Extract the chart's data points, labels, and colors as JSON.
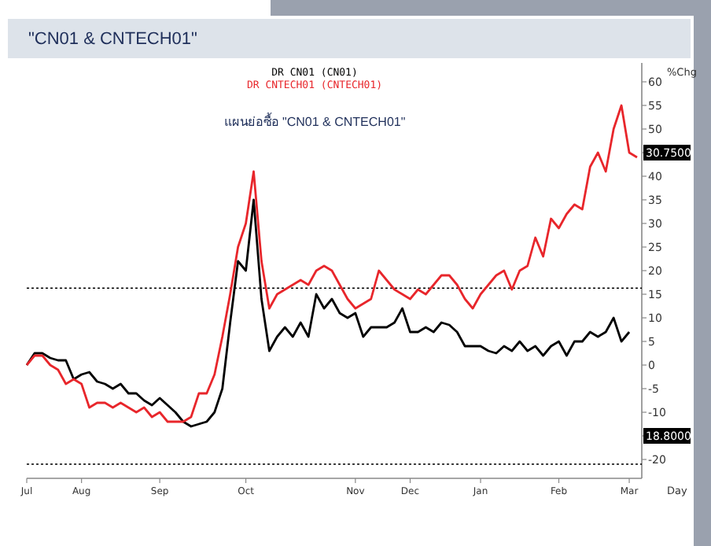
{
  "chart_data": {
    "type": "line",
    "title": "\"CN01 & CNTECH01\"",
    "subtitle": "แผนย่อซื้อ \"CN01 & CNTECH01\"",
    "ylabel": "%Chg",
    "xlabel": "Day",
    "legend": "top",
    "grid": false,
    "marker": "none",
    "line_style": "solid",
    "ylim": [
      -24,
      64
    ],
    "yticks": [
      -20,
      {
        "value": -15,
        "label": null
      },
      -10,
      -5,
      0,
      5,
      10,
      15,
      20,
      25,
      30,
      35,
      40,
      {
        "value": 45,
        "label": null
      },
      50,
      55,
      60
    ],
    "categories": [
      "Jul",
      null,
      null,
      null,
      null,
      null,
      null,
      "Aug",
      null,
      null,
      null,
      null,
      null,
      null,
      null,
      null,
      null,
      "Sep",
      null,
      null,
      null,
      null,
      null,
      null,
      null,
      null,
      null,
      null,
      "Oct",
      null,
      null,
      null,
      null,
      null,
      null,
      null,
      null,
      null,
      null,
      null,
      null,
      null,
      "Nov",
      null,
      null,
      null,
      null,
      null,
      null,
      "Dec",
      null,
      null,
      null,
      null,
      null,
      null,
      null,
      null,
      "Jan",
      null,
      null,
      null,
      null,
      null,
      null,
      null,
      null,
      null,
      "Feb",
      null,
      null,
      null,
      null,
      null,
      null,
      null,
      null,
      "Mar",
      null
    ],
    "ref_lines": [
      {
        "axis": "y",
        "value": 16.3,
        "line_style": "dotted",
        "color": "#000000"
      },
      {
        "axis": "y",
        "value": -21,
        "line_style": "dotted",
        "color": "#000000"
      }
    ],
    "annotations": [
      "30.7500",
      "18.8000"
    ],
    "series": [
      {
        "name": "DR CN01 (CN01)",
        "color": "#000000",
        "values": [
          0,
          2.5,
          2.5,
          1.5,
          1,
          1,
          -3,
          -2,
          -1.5,
          -3.5,
          -4,
          -5,
          -4,
          -6,
          -6,
          -7.5,
          -8.5,
          -7,
          -8.5,
          -10,
          -12,
          -13,
          -12.5,
          -12,
          -10,
          -5,
          9,
          22,
          20,
          35,
          14,
          3,
          6,
          8,
          6,
          9,
          6,
          15,
          12,
          14,
          11,
          10,
          11,
          6,
          8,
          8,
          8,
          9,
          12,
          7,
          7,
          8,
          7,
          9,
          8.5,
          7,
          4,
          4,
          4,
          3,
          2.5,
          4,
          3,
          5,
          3,
          4,
          2,
          4,
          5,
          2,
          5,
          5,
          7,
          6,
          7,
          10,
          5,
          7,
          null
        ]
      },
      {
        "name": "DR CNTECH01 (CNTECH01)",
        "color": "#e8262b",
        "values": [
          0,
          2,
          2,
          0,
          -1,
          -4,
          -3,
          -4,
          -9,
          -8,
          -8,
          -9,
          -8,
          -9,
          -10,
          -9,
          -11,
          -10,
          -12,
          -12,
          -12,
          -11,
          -6,
          -6,
          -2,
          6,
          15,
          25,
          30,
          41,
          22,
          12,
          15,
          16,
          17,
          18,
          17,
          20,
          21,
          20,
          17,
          14,
          12,
          13,
          14,
          20,
          18,
          16,
          15,
          14,
          16,
          15,
          17,
          19,
          19,
          17,
          14,
          12,
          15,
          17,
          19,
          20,
          16,
          20,
          21,
          27,
          23,
          31,
          29,
          32,
          34,
          33,
          42,
          45,
          41,
          50,
          55,
          45,
          44
        ]
      }
    ]
  }
}
